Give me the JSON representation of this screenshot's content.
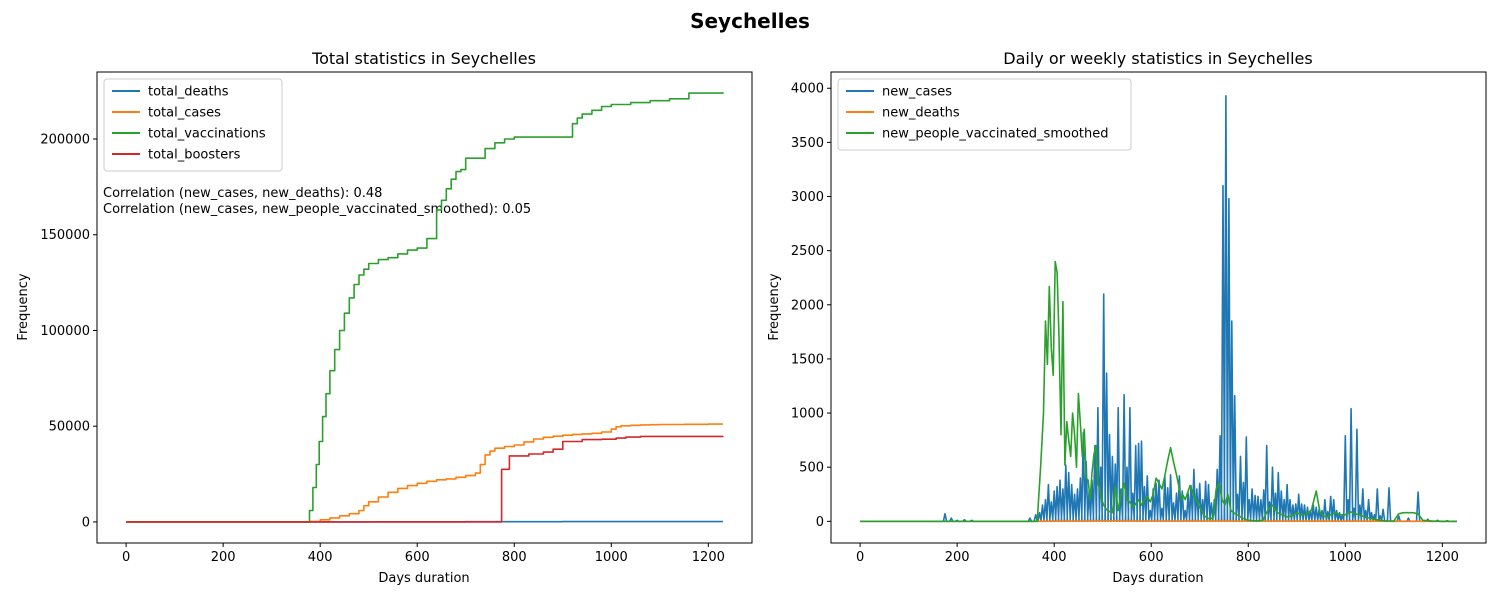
{
  "figure": {
    "suptitle": "Seychelles"
  },
  "colors": {
    "blue": "#1f77b4",
    "orange": "#ff7f0e",
    "green": "#2ca02c",
    "red": "#d62728"
  },
  "chart_data": [
    {
      "type": "line",
      "title": "Total statistics in Seychelles",
      "xlabel": "Days duration",
      "ylabel": "Frequency",
      "xlim": [
        -60,
        1290
      ],
      "ylim": [
        -11000,
        235000
      ],
      "xticks": [
        0,
        200,
        400,
        600,
        800,
        1000,
        1200
      ],
      "yticks": [
        0,
        50000,
        100000,
        150000,
        200000
      ],
      "legend_position": "upper-left",
      "annotations": [
        "Correlation (new_cases, new_deaths): 0.48",
        "Correlation (new_cases, new_people_vaccinated_smoothed): 0.05"
      ],
      "series": [
        {
          "name": "total_deaths",
          "color": "#1f77b4",
          "step": true,
          "x": [
            0,
            380,
            500,
            700,
            900,
            1230
          ],
          "y": [
            0,
            0,
            80,
            140,
            170,
            172
          ]
        },
        {
          "name": "total_cases",
          "color": "#ff7f0e",
          "step": true,
          "x": [
            0,
            370,
            380,
            400,
            420,
            440,
            460,
            480,
            490,
            500,
            520,
            540,
            560,
            580,
            600,
            620,
            640,
            660,
            680,
            700,
            720,
            730,
            740,
            750,
            760,
            780,
            800,
            820,
            840,
            860,
            880,
            900,
            920,
            940,
            960,
            980,
            1000,
            1010,
            1020,
            1040,
            1060,
            1080,
            1100,
            1150,
            1200,
            1230
          ],
          "y": [
            0,
            0,
            300,
            1100,
            2100,
            3200,
            4300,
            6000,
            8500,
            10500,
            13000,
            15500,
            17500,
            19000,
            20200,
            21200,
            22000,
            22500,
            23300,
            24200,
            25500,
            30000,
            35000,
            37000,
            38500,
            39400,
            40200,
            41800,
            43300,
            44200,
            44800,
            45300,
            45700,
            46000,
            46300,
            47000,
            48500,
            49700,
            50200,
            50500,
            50700,
            50800,
            50900,
            51000,
            51100,
            51100
          ]
        },
        {
          "name": "total_vaccinations",
          "color": "#2ca02c",
          "step": true,
          "x": [
            0,
            372,
            378,
            385,
            392,
            398,
            405,
            412,
            420,
            430,
            440,
            450,
            460,
            470,
            480,
            490,
            500,
            520,
            540,
            560,
            580,
            600,
            620,
            640,
            650,
            660,
            670,
            680,
            690,
            700,
            740,
            760,
            780,
            800,
            820,
            840,
            860,
            880,
            920,
            930,
            940,
            960,
            980,
            1000,
            1040,
            1080,
            1120,
            1160,
            1230
          ],
          "y": [
            0,
            0,
            6000,
            18000,
            30000,
            42000,
            55000,
            67000,
            79000,
            90000,
            100000,
            109000,
            117000,
            124000,
            129000,
            132000,
            135000,
            137000,
            138000,
            140000,
            142000,
            143000,
            148000,
            163000,
            168000,
            174000,
            179000,
            183000,
            184000,
            190000,
            195000,
            198000,
            200000,
            201000,
            201000,
            201000,
            201000,
            201000,
            208000,
            211000,
            213000,
            215000,
            217000,
            218000,
            219000,
            220000,
            221000,
            224000,
            224500
          ]
        },
        {
          "name": "total_boosters",
          "color": "#d62728",
          "step": true,
          "x": [
            0,
            773,
            774,
            790,
            830,
            860,
            880,
            900,
            940,
            980,
            1010,
            1030,
            1060,
            1230
          ],
          "y": [
            0,
            0,
            27500,
            34500,
            35500,
            36500,
            38000,
            42000,
            43000,
            43200,
            43800,
            44300,
            44700,
            44900
          ]
        }
      ]
    },
    {
      "type": "line",
      "title": "Daily or weekly statistics in Seychelles",
      "xlabel": "Days duration",
      "ylabel": "Frequency",
      "xlim": [
        -60,
        1290
      ],
      "ylim": [
        -200,
        4150
      ],
      "xticks": [
        0,
        200,
        400,
        600,
        800,
        1000,
        1200
      ],
      "yticks": [
        0,
        500,
        1000,
        1500,
        2000,
        2500,
        3000,
        3500,
        4000
      ],
      "legend_position": "upper-left",
      "series": [
        {
          "name": "new_cases",
          "color": "#1f77b4",
          "spikes": true,
          "x": [
            175,
            188,
            200,
            215,
            230,
            350,
            362,
            370,
            376,
            382,
            388,
            394,
            400,
            406,
            412,
            418,
            424,
            430,
            436,
            442,
            448,
            454,
            460,
            466,
            472,
            478,
            484,
            490,
            496,
            502,
            508,
            514,
            520,
            526,
            532,
            538,
            544,
            550,
            556,
            562,
            568,
            574,
            580,
            586,
            592,
            598,
            604,
            610,
            616,
            622,
            628,
            634,
            640,
            646,
            652,
            658,
            664,
            670,
            676,
            682,
            688,
            694,
            700,
            706,
            712,
            718,
            724,
            730,
            736,
            742,
            748,
            754,
            760,
            766,
            772,
            778,
            784,
            790,
            796,
            802,
            808,
            814,
            820,
            826,
            832,
            838,
            844,
            850,
            856,
            862,
            868,
            874,
            880,
            886,
            892,
            898,
            904,
            910,
            916,
            922,
            928,
            934,
            940,
            946,
            952,
            958,
            964,
            970,
            976,
            982,
            988,
            994,
            1000,
            1006,
            1012,
            1018,
            1024,
            1030,
            1036,
            1042,
            1048,
            1054,
            1060,
            1066,
            1072,
            1078,
            1090,
            1110,
            1130,
            1150,
            1170,
            1190,
            1210
          ],
          "y": [
            70,
            30,
            10,
            15,
            10,
            30,
            60,
            80,
            150,
            200,
            340,
            180,
            280,
            320,
            380,
            300,
            520,
            450,
            340,
            250,
            300,
            400,
            820,
            550,
            280,
            380,
            700,
            1050,
            500,
            2100,
            1370,
            800,
            600,
            530,
            1050,
            300,
            1170,
            500,
            1050,
            260,
            700,
            720,
            740,
            320,
            420,
            100,
            300,
            350,
            380,
            120,
            420,
            310,
            430,
            170,
            260,
            420,
            280,
            100,
            260,
            330,
            480,
            300,
            350,
            200,
            370,
            340,
            170,
            200,
            480,
            790,
            3100,
            3930,
            2980,
            1850,
            1160,
            250,
            600,
            360,
            780,
            200,
            300,
            240,
            230,
            200,
            290,
            700,
            180,
            500,
            260,
            450,
            280,
            200,
            340,
            200,
            150,
            160,
            250,
            160,
            150,
            130,
            100,
            150,
            130,
            110,
            100,
            200,
            90,
            230,
            200,
            100,
            80,
            60,
            790,
            200,
            1040,
            120,
            850,
            150,
            300,
            100,
            200,
            80,
            60,
            300,
            50,
            110,
            310,
            50,
            30,
            270,
            20,
            10,
            5
          ],
          "y_offset_note": ""
        },
        {
          "name": "new_deaths",
          "color": "#ff7f0e",
          "step": false,
          "x": [
            0,
            380,
            450,
            500,
            600,
            700,
            800,
            900,
            1000,
            1100,
            1230
          ],
          "y": [
            0,
            0,
            2,
            5,
            3,
            4,
            3,
            2,
            1,
            1,
            0
          ]
        },
        {
          "name": "new_people_vaccinated_smoothed",
          "color": "#2ca02c",
          "step": false,
          "x": [
            0,
            365,
            372,
            378,
            382,
            386,
            390,
            394,
            398,
            402,
            406,
            410,
            414,
            418,
            422,
            426,
            430,
            434,
            438,
            442,
            446,
            450,
            454,
            458,
            462,
            466,
            470,
            474,
            478,
            482,
            486,
            490,
            494,
            498,
            502,
            506,
            510,
            514,
            520,
            526,
            532,
            538,
            544,
            550,
            556,
            562,
            568,
            574,
            580,
            586,
            592,
            598,
            604,
            610,
            616,
            622,
            628,
            634,
            640,
            646,
            652,
            658,
            662,
            666,
            670,
            674,
            680,
            686,
            692,
            698,
            704,
            710,
            716,
            722,
            728,
            734,
            740,
            746,
            752,
            758,
            764,
            770,
            776,
            782,
            788,
            794,
            800,
            810,
            820,
            830,
            840,
            850,
            860,
            870,
            880,
            890,
            900,
            910,
            920,
            930,
            940,
            948,
            955,
            962,
            970,
            980,
            990,
            1000,
            1010,
            1020,
            1030,
            1040,
            1050,
            1060,
            1070,
            1080,
            1090,
            1100,
            1110,
            1120,
            1130,
            1140,
            1150,
            1160,
            1170,
            1180,
            1190,
            1200,
            1230
          ],
          "y": [
            0,
            0,
            500,
            1000,
            1850,
            1450,
            2170,
            1600,
            1350,
            2400,
            2300,
            1700,
            800,
            2030,
            520,
            920,
            750,
            600,
            1000,
            800,
            500,
            1180,
            900,
            600,
            850,
            400,
            380,
            200,
            450,
            620,
            700,
            350,
            300,
            200,
            150,
            120,
            100,
            90,
            80,
            320,
            100,
            250,
            350,
            200,
            180,
            130,
            160,
            200,
            150,
            200,
            230,
            180,
            250,
            400,
            350,
            300,
            420,
            560,
            680,
            550,
            430,
            300,
            200,
            240,
            200,
            250,
            330,
            260,
            200,
            150,
            100,
            50,
            30,
            20,
            40,
            300,
            350,
            200,
            150,
            250,
            100,
            80,
            60,
            50,
            30,
            20,
            10,
            5,
            5,
            10,
            100,
            150,
            80,
            60,
            40,
            50,
            80,
            60,
            70,
            100,
            280,
            80,
            50,
            40,
            60,
            80,
            60,
            60,
            90,
            70,
            60,
            40,
            30,
            20,
            10,
            5,
            2,
            2,
            70,
            80,
            80,
            80,
            70,
            10,
            5,
            2,
            1,
            0,
            0
          ]
        }
      ]
    }
  ]
}
